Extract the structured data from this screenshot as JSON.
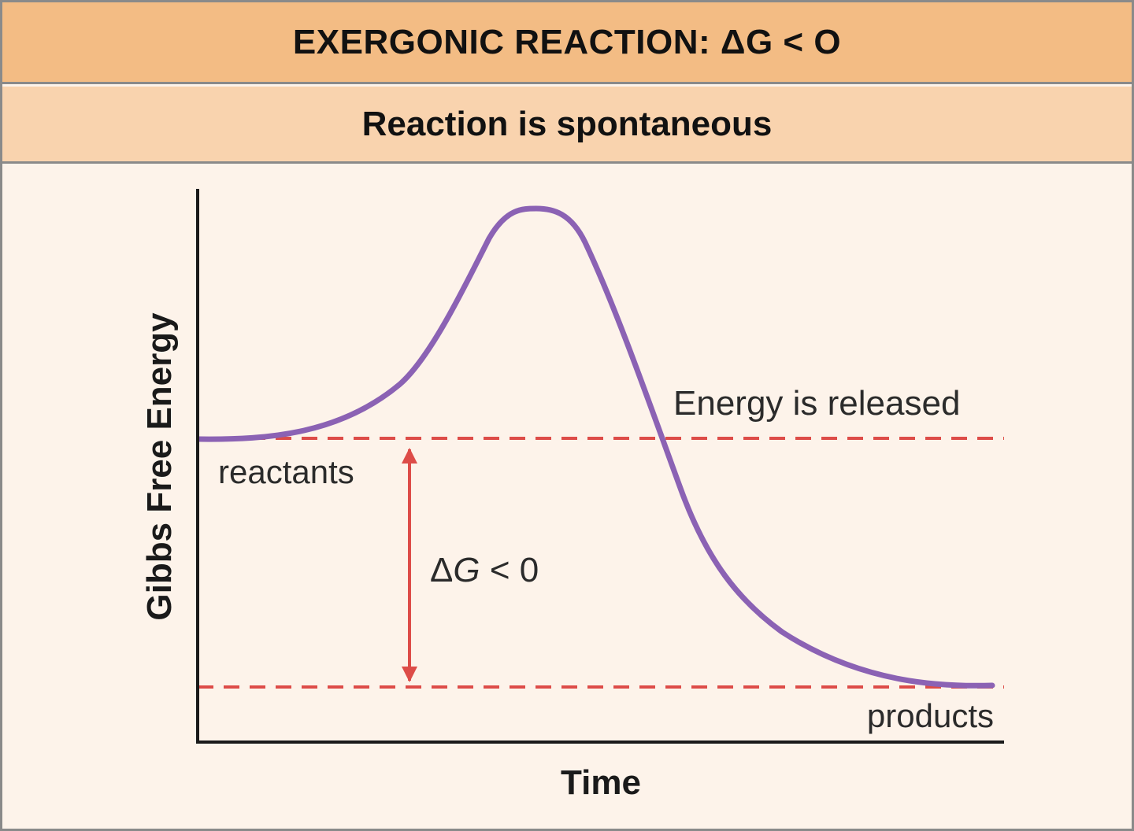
{
  "header": {
    "title": "EXERGONIC REACTION: ΔG < O",
    "subtitle": "Reaction is spontaneous"
  },
  "diagram": {
    "y_axis_label": "Gibbs Free Energy",
    "x_axis_label": "Time",
    "labels": {
      "reactants": "reactants",
      "products": "products",
      "energy_released": "Energy is released",
      "delta_g_symbol": "Δ",
      "delta_g_variable": "G",
      "delta_g_relation": " < 0"
    },
    "colors": {
      "curve": "#8b62b4",
      "reference_lines": "#dd4c48",
      "arrow": "#dd4c48",
      "axes": "#1a1a1a"
    }
  }
}
